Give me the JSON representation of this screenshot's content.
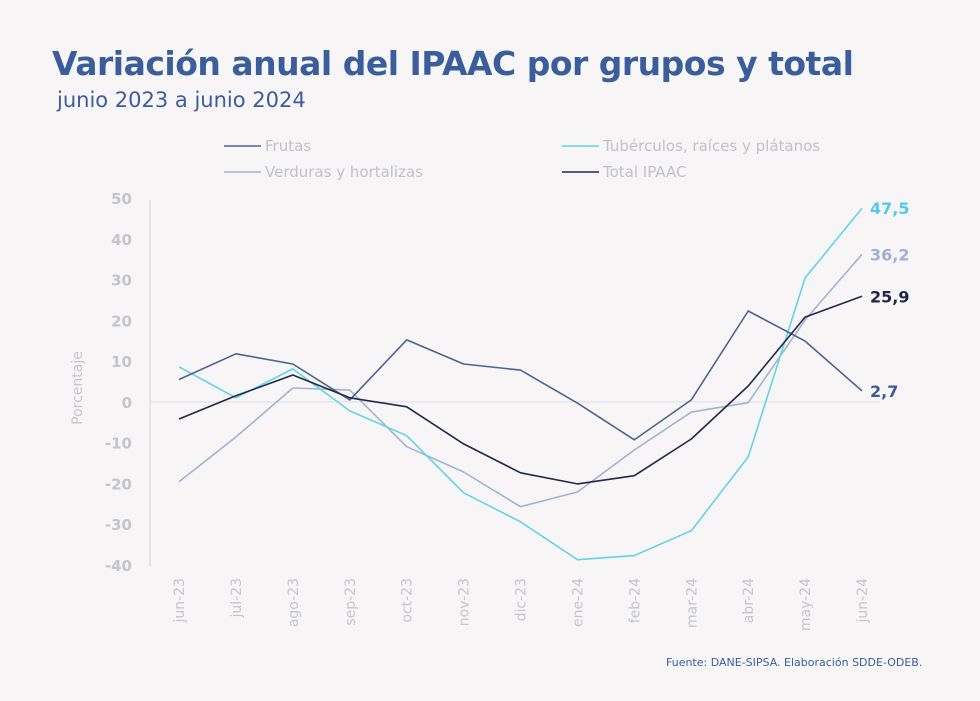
{
  "header": {
    "title": "Variación anual del IPAAC por grupos y total",
    "subtitle": "junio 2023 a junio 2024"
  },
  "footer": {
    "source": "Fuente: DANE-SIPSA. Elaboración SDDE-ODEB."
  },
  "chart_data": {
    "type": "line",
    "title": "Variación anual del IPAAC por grupos y total",
    "subtitle": "junio 2023 a junio 2024",
    "xlabel": "",
    "ylabel": "Porcentaje",
    "ylim": [
      -40,
      50
    ],
    "yticks": [
      50,
      40,
      30,
      20,
      10,
      0,
      -10,
      -20,
      -30,
      -40
    ],
    "grid": false,
    "zero_line": true,
    "legend_position": "top",
    "x": [
      "jun-23",
      "jul-23",
      "ago-23",
      "sep-23",
      "oct-23",
      "nov-23",
      "dic-23",
      "ene-24",
      "feb-24",
      "mar-24",
      "abr-24",
      "may-24",
      "jun-24"
    ],
    "series": [
      {
        "name": "Frutas",
        "color": "#4a6491",
        "values": [
          5.5,
          11.8,
          9.3,
          0.5,
          15.2,
          9.3,
          7.8,
          -0.3,
          -9.3,
          0.5,
          22.3,
          14.9,
          2.7
        ],
        "end_label": "2,7",
        "end_label_color": "#3d5a95"
      },
      {
        "name": "Tubérculos, raíces y plátanos",
        "color": "#62d4e6",
        "values": [
          8.6,
          1.0,
          8.1,
          -2.2,
          -8.3,
          -22.3,
          -29.4,
          -38.7,
          -37.7,
          -31.6,
          -13.5,
          30.4,
          47.5
        ],
        "end_label": "47,5",
        "end_label_color": "#55c8ec"
      },
      {
        "name": "Verduras y hortalizas",
        "color": "#a3b3d0",
        "values": [
          -19.6,
          -8.6,
          3.4,
          2.9,
          -11.0,
          -17.2,
          -25.7,
          -22.1,
          -11.8,
          -2.5,
          -0.2,
          20.1,
          36.2
        ],
        "end_label": "36,2",
        "end_label_color": "#9fb1d3"
      },
      {
        "name": "Total IPAAC",
        "color": "#22294a",
        "values": [
          -4.2,
          1.5,
          6.6,
          1.0,
          -1.2,
          -10.3,
          -17.4,
          -20.1,
          -18.1,
          -9.1,
          3.9,
          20.8,
          25.9
        ],
        "end_label": "25,9",
        "end_label_color": "#1f2546"
      }
    ],
    "legend": [
      {
        "label": "Frutas",
        "series": 0
      },
      {
        "label": "Tubérculos, raíces y plátanos",
        "series": 1
      },
      {
        "label": "Verduras y hortalizas",
        "series": 2
      },
      {
        "label": "Total IPAAC",
        "series": 3
      }
    ]
  }
}
